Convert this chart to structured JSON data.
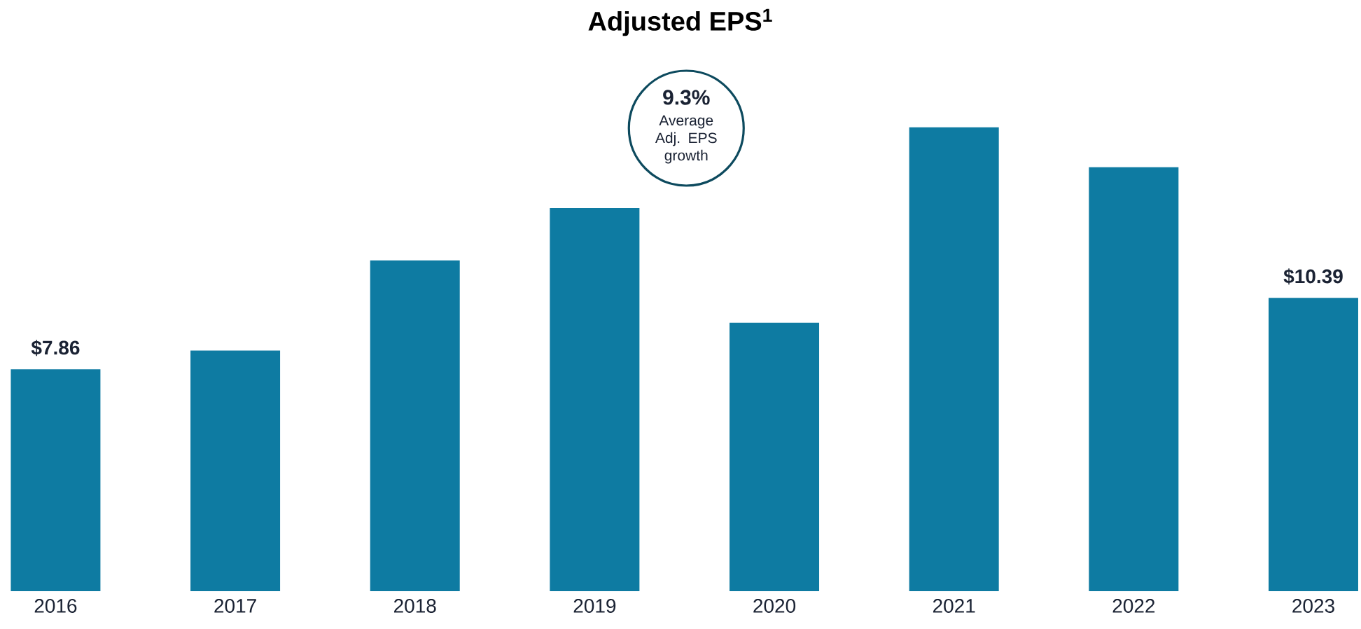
{
  "chart_data": {
    "type": "bar",
    "title": "Adjusted EPS$^{1}$",
    "categories": [
      "2016",
      "2017",
      "2018",
      "2019",
      "2020",
      "2021",
      "2022",
      "2023"
    ],
    "values": [
      7.86,
      8.52,
      11.72,
      13.57,
      9.51,
      16.43,
      15.02,
      10.39
    ],
    "value_labels": [
      "$7.86",
      null,
      null,
      null,
      null,
      null,
      null,
      "$10.39"
    ],
    "color": "#0e7ba2",
    "annotations": [
      {
        "text": "9.3%"
      },
      {
        "text": "Average Adj. EPS growth"
      }
    ]
  }
}
